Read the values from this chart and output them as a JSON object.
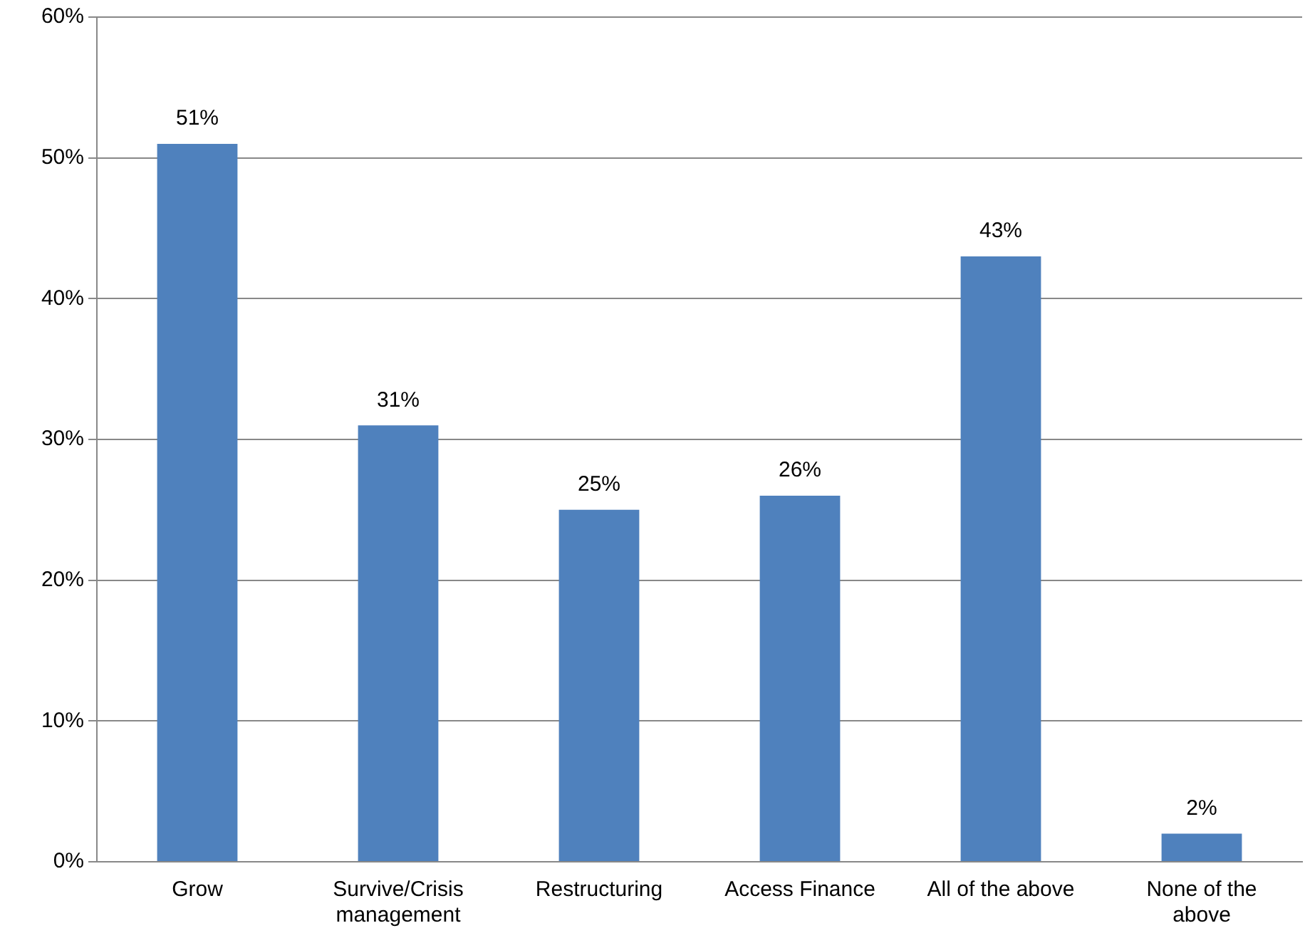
{
  "chart_data": {
    "type": "bar",
    "categories": [
      "Grow",
      "Survive/Crisis management",
      "Restructuring",
      "Access Finance",
      "All of the above",
      "None of the above"
    ],
    "values": [
      51,
      31,
      25,
      26,
      43,
      2
    ],
    "color": "#4f81bd",
    "value_labels": [
      "51%",
      "31%",
      "25%",
      "26%",
      "43%",
      "2%"
    ],
    "ylim": [
      0,
      60
    ],
    "yticks": [
      {
        "value": 0,
        "label": "0%"
      },
      {
        "value": 10,
        "label": "10%"
      },
      {
        "value": 20,
        "label": "20%"
      },
      {
        "value": 30,
        "label": "30%"
      },
      {
        "value": 40,
        "label": "40%"
      },
      {
        "value": 50,
        "label": "50%"
      },
      {
        "value": 60,
        "label": "60%"
      }
    ],
    "grid": "y",
    "legend": false
  }
}
